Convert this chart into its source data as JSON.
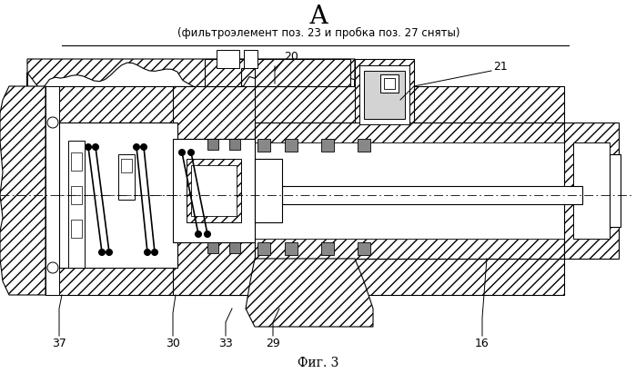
{
  "title": "А",
  "subtitle": "(фильтроэлемент поз. 23 и пробка поз. 27 сняты)",
  "fig_label": "Фиг. 3",
  "bg_color": "#ffffff",
  "line_color": "#000000"
}
